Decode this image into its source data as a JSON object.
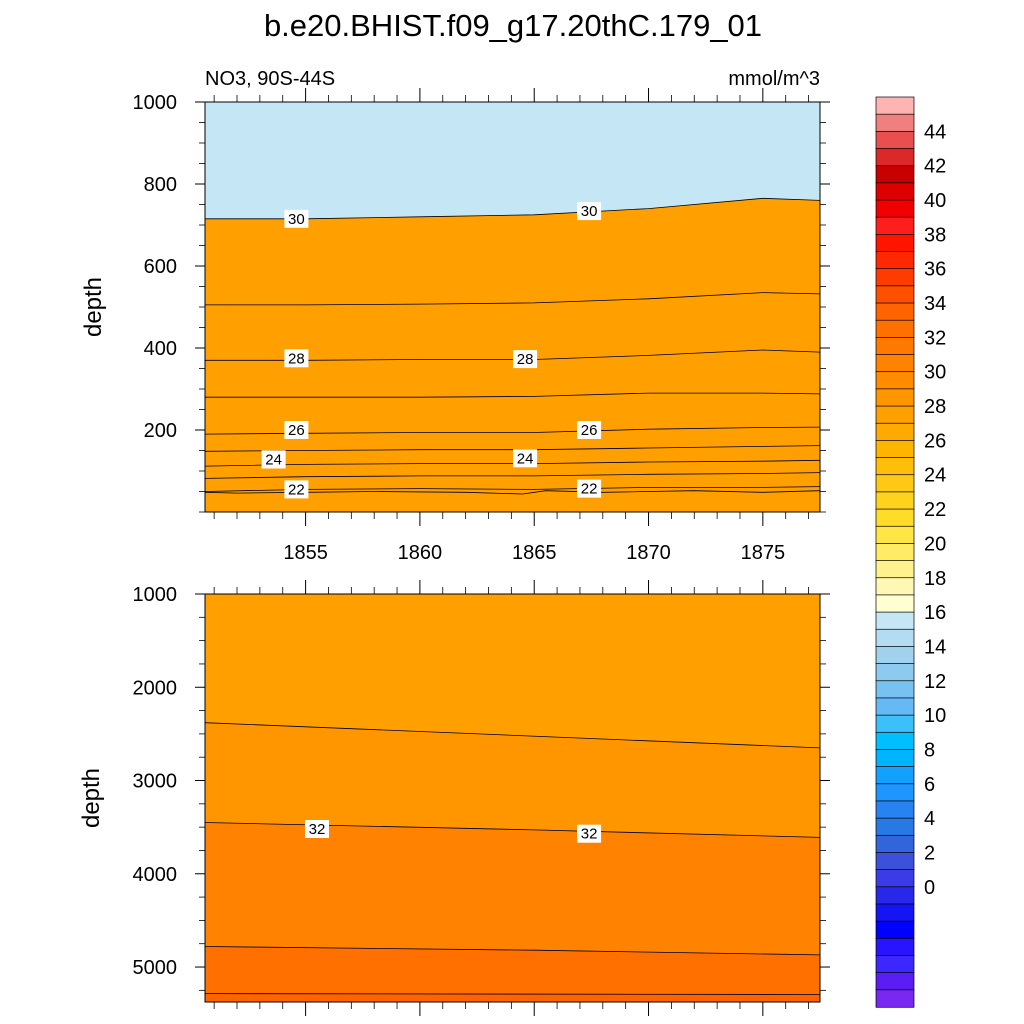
{
  "title": "b.e20.BHIST.f09_g17.20thC.179_01",
  "chart_data": [
    {
      "type": "contour",
      "subtitle_left": "NO3, 90S-44S",
      "subtitle_right": "mmol/m^3",
      "ylabel": "depth",
      "xlim": [
        1850.6,
        1877.5
      ],
      "ylim": [
        1000,
        0
      ],
      "x_ticks": [
        1855,
        1860,
        1865,
        1870,
        1875
      ],
      "x_tick_labels": [
        "1855",
        "1860",
        "1865",
        "1870",
        "1875"
      ],
      "y_ticks": [
        200,
        400,
        600,
        800,
        1000
      ],
      "y_tick_labels": [
        "200",
        "400",
        "600",
        "800",
        "1000"
      ],
      "contours": [
        {
          "level": 21,
          "points": [
            [
              1850.6,
              48
            ],
            [
              1852,
              46
            ],
            [
              1855,
              48
            ],
            [
              1858,
              50
            ],
            [
              1862,
              48
            ],
            [
              1864.5,
              44
            ],
            [
              1865.5,
              52
            ],
            [
              1868,
              48
            ],
            [
              1872,
              52
            ],
            [
              1875,
              48
            ],
            [
              1877.5,
              52
            ]
          ]
        },
        {
          "level": 22,
          "points": [
            [
              1850.6,
              50
            ],
            [
              1855,
              55
            ],
            [
              1860,
              57
            ],
            [
              1865,
              55
            ],
            [
              1870,
              60
            ],
            [
              1875,
              60
            ],
            [
              1877.5,
              62
            ]
          ]
        },
        {
          "level": 23,
          "points": [
            [
              1850.6,
              82
            ],
            [
              1855,
              86
            ],
            [
              1860,
              88
            ],
            [
              1865,
              88
            ],
            [
              1870,
              92
            ],
            [
              1875,
              94
            ],
            [
              1877.5,
              96
            ]
          ]
        },
        {
          "level": 24,
          "points": [
            [
              1850.6,
              112
            ],
            [
              1855,
              116
            ],
            [
              1860,
              118
            ],
            [
              1865,
              118
            ],
            [
              1870,
              122
            ],
            [
              1875,
              124
            ],
            [
              1877.5,
              126
            ]
          ]
        },
        {
          "level": 25,
          "points": [
            [
              1850.6,
              148
            ],
            [
              1855,
              150
            ],
            [
              1860,
              152
            ],
            [
              1865,
              152
            ],
            [
              1870,
              156
            ],
            [
              1875,
              160
            ],
            [
              1877.5,
              162
            ]
          ]
        },
        {
          "level": 26,
          "points": [
            [
              1850.6,
              190
            ],
            [
              1855,
              192
            ],
            [
              1860,
              194
            ],
            [
              1865,
              194
            ],
            [
              1870,
              202
            ],
            [
              1875,
              206
            ],
            [
              1877.5,
              207
            ]
          ]
        },
        {
          "level": 27,
          "points": [
            [
              1850.6,
              280
            ],
            [
              1855,
              280
            ],
            [
              1860,
              280
            ],
            [
              1865,
              282
            ],
            [
              1870,
              290
            ],
            [
              1875,
              290
            ],
            [
              1877.5,
              288
            ]
          ]
        },
        {
          "level": 28,
          "points": [
            [
              1850.6,
              370
            ],
            [
              1855,
              370
            ],
            [
              1860,
              372
            ],
            [
              1865,
              372
            ],
            [
              1870,
              382
            ],
            [
              1875,
              395
            ],
            [
              1877.5,
              390
            ]
          ]
        },
        {
          "level": 29,
          "points": [
            [
              1850.6,
              505
            ],
            [
              1855,
              505
            ],
            [
              1860,
              507
            ],
            [
              1865,
              510
            ],
            [
              1870,
              520
            ],
            [
              1875,
              535
            ],
            [
              1877.5,
              532
            ]
          ]
        },
        {
          "level": 30,
          "points": [
            [
              1850.6,
              715
            ],
            [
              1855,
              715
            ],
            [
              1860,
              720
            ],
            [
              1865,
              725
            ],
            [
              1870,
              740
            ],
            [
              1875,
              765
            ],
            [
              1877.5,
              760
            ]
          ]
        }
      ],
      "contour_labels": [
        {
          "text": "22",
          "x": 1854.6,
          "y": 55
        },
        {
          "text": "22",
          "x": 1867.4,
          "y": 57
        },
        {
          "text": "24",
          "x": 1853.6,
          "y": 128
        },
        {
          "text": "24",
          "x": 1864.6,
          "y": 131
        },
        {
          "text": "26",
          "x": 1854.6,
          "y": 200
        },
        {
          "text": "26",
          "x": 1867.4,
          "y": 200
        },
        {
          "text": "28",
          "x": 1854.6,
          "y": 375
        },
        {
          "text": "28",
          "x": 1864.6,
          "y": 373
        },
        {
          "text": "30",
          "x": 1854.6,
          "y": 715
        },
        {
          "text": "30",
          "x": 1867.4,
          "y": 734
        }
      ]
    },
    {
      "type": "contour",
      "ylabel": "depth",
      "xlim": [
        1850.6,
        1877.5
      ],
      "ylim": [
        1000,
        5375
      ],
      "x_ticks": [
        1855,
        1860,
        1865,
        1870,
        1875
      ],
      "y_ticks": [
        1000,
        2000,
        3000,
        4000,
        5000
      ],
      "y_tick_labels": [
        "1000",
        "2000",
        "3000",
        "4000",
        "5000"
      ],
      "contours": [
        {
          "level": 31,
          "points": [
            [
              1850.6,
              2380
            ],
            [
              1877.5,
              2650
            ]
          ]
        },
        {
          "level": 32,
          "points": [
            [
              1850.6,
              3450
            ],
            [
              1865,
              3530
            ],
            [
              1877.5,
              3610
            ]
          ]
        },
        {
          "level": 33,
          "points": [
            [
              1850.6,
              4780
            ],
            [
              1865,
              4820
            ],
            [
              1877.5,
              4870
            ]
          ]
        },
        {
          "level": 34,
          "points": [
            [
              1850.6,
              5285
            ],
            [
              1877.5,
              5295
            ]
          ]
        }
      ],
      "contour_labels": [
        {
          "text": "32",
          "x": 1855.5,
          "y": 3520
        },
        {
          "text": "32",
          "x": 1867.4,
          "y": 3570
        }
      ]
    }
  ],
  "colorbar": {
    "tick_labels": [
      "44",
      "42",
      "40",
      "38",
      "36",
      "34",
      "32",
      "30",
      "28",
      "26",
      "24",
      "22",
      "20",
      "18",
      "16",
      "14",
      "12",
      "10",
      "8",
      "6",
      "4",
      "2",
      "0"
    ],
    "colors": [
      "#FFB4B4",
      "#F08080",
      "#E85050",
      "#DC2828",
      "#C80000",
      "#DC0000",
      "#F00000",
      "#FF1E1E",
      "#FF1400",
      "#FF2800",
      "#FF3C00",
      "#FF5000",
      "#FF6400",
      "#FF7000",
      "#FF7800",
      "#FF8200",
      "#FF8C00",
      "#FF9600",
      "#FFA000",
      "#FFAA00",
      "#FFB400",
      "#FFBE0A",
      "#FFC814",
      "#FFD21E",
      "#FFDC28",
      "#FFE646",
      "#FFEC64",
      "#FFF28C",
      "#FFF8B4",
      "#FFFFD2",
      "#C4E6F5",
      "#B4DCF0",
      "#A0D2EE",
      "#8CCAF0",
      "#78C2F2",
      "#64BAF4",
      "#3CC0FA",
      "#00BEFF",
      "#00B4FF",
      "#14A0FF",
      "#1E96FF",
      "#2882F0",
      "#2878E6",
      "#3264DC",
      "#3C50DC",
      "#3C3CE6",
      "#2828EB",
      "#1414F5",
      "#0000FF",
      "#2814FF",
      "#3C28FF",
      "#5A1EF5",
      "#7828F0"
    ]
  }
}
